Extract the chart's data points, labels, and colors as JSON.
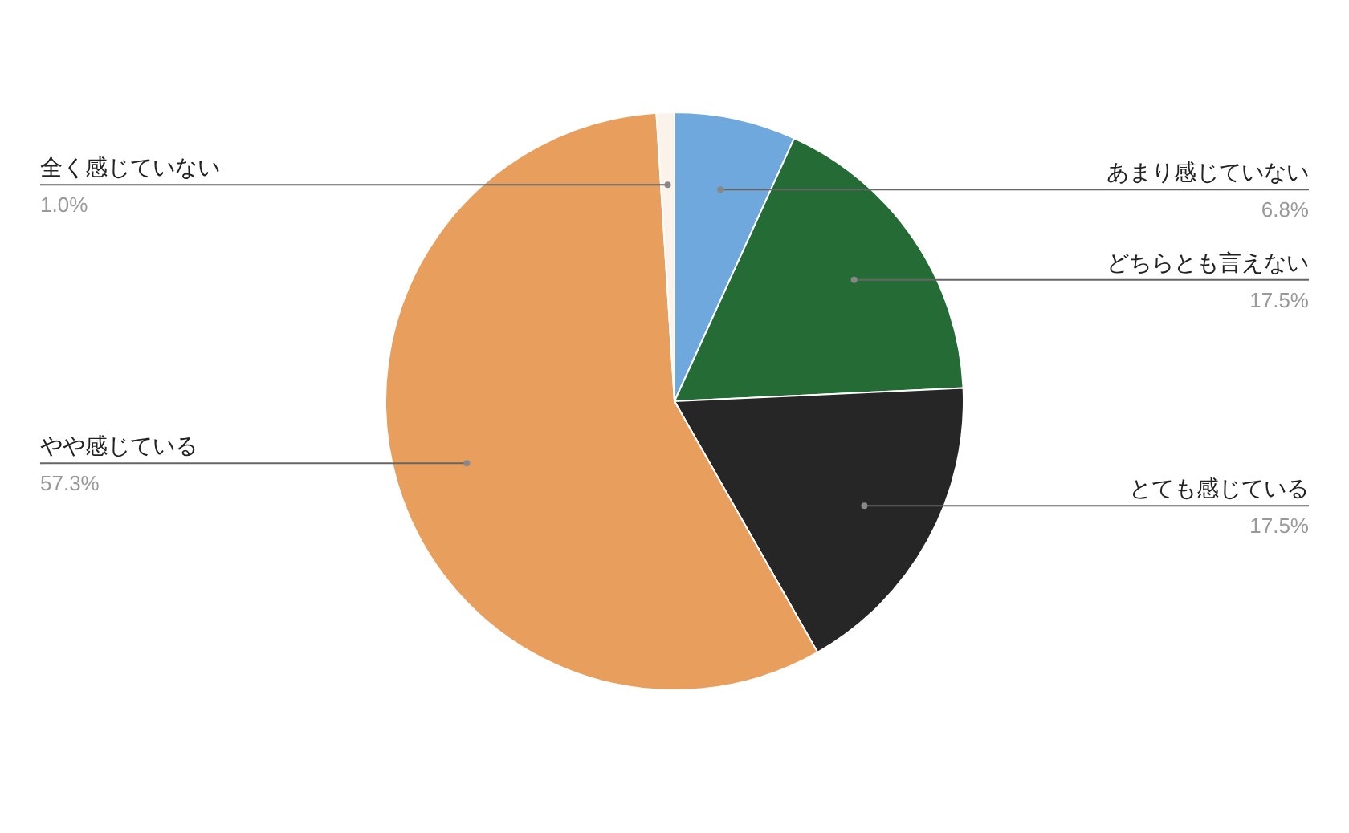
{
  "chart_data": {
    "type": "pie",
    "categories": [
      "あまり感じていない",
      "どちらとも言えない",
      "とても感じている",
      "やや感じている",
      "全く感じていない"
    ],
    "values": [
      6.8,
      17.5,
      17.5,
      57.3,
      1.0
    ],
    "value_labels": [
      "6.8%",
      "17.5%",
      "17.5%",
      "57.3%",
      "1.0%"
    ],
    "colors": [
      "#6fa8dc",
      "#256b35",
      "#262626",
      "#e89f5e",
      "#fbf3ea"
    ]
  }
}
